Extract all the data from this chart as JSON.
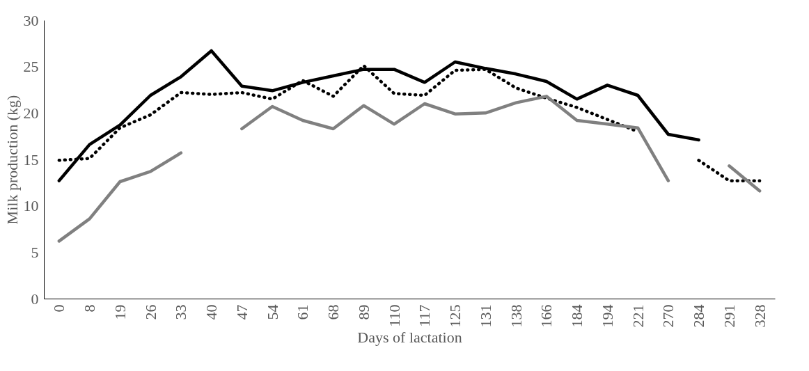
{
  "chart_data": {
    "type": "line",
    "xlabel": "Days of lactation",
    "ylabel": "Milk production (kg)",
    "categories": [
      "0",
      "8",
      "19",
      "26",
      "33",
      "40",
      "47",
      "54",
      "61",
      "68",
      "89",
      "110",
      "117",
      "125",
      "131",
      "138",
      "166",
      "184",
      "194",
      "221",
      "270",
      "284",
      "291",
      "328"
    ],
    "ylim": [
      0,
      30
    ],
    "yticks": [
      0,
      5,
      10,
      15,
      20,
      25,
      30
    ],
    "series": [
      {
        "color": "#000000",
        "line_style": "solid",
        "values": [
          12.7,
          16.6,
          18.7,
          21.9,
          23.9,
          26.7,
          22.9,
          22.4,
          23.3,
          24.0,
          24.7,
          24.7,
          23.3,
          25.5,
          24.8,
          24.2,
          23.4,
          21.5,
          23.0,
          21.9,
          17.7,
          17.1,
          null,
          null
        ]
      },
      {
        "color": "#000000",
        "line_style": "dotted",
        "values": [
          14.9,
          15.1,
          18.4,
          19.8,
          22.2,
          22.0,
          22.2,
          21.5,
          23.5,
          21.8,
          25.1,
          22.1,
          21.9,
          24.6,
          24.7,
          22.7,
          21.6,
          20.6,
          19.3,
          18.0,
          null,
          14.9,
          12.7,
          12.7
        ]
      },
      {
        "color": "#808080",
        "line_style": "solid",
        "values": [
          6.2,
          8.6,
          12.6,
          13.7,
          15.7,
          null,
          18.3,
          20.7,
          19.2,
          18.3,
          20.8,
          18.8,
          21.0,
          19.9,
          20.0,
          21.1,
          21.8,
          19.2,
          18.8,
          18.4,
          12.7,
          null,
          14.3,
          11.6
        ]
      }
    ]
  }
}
